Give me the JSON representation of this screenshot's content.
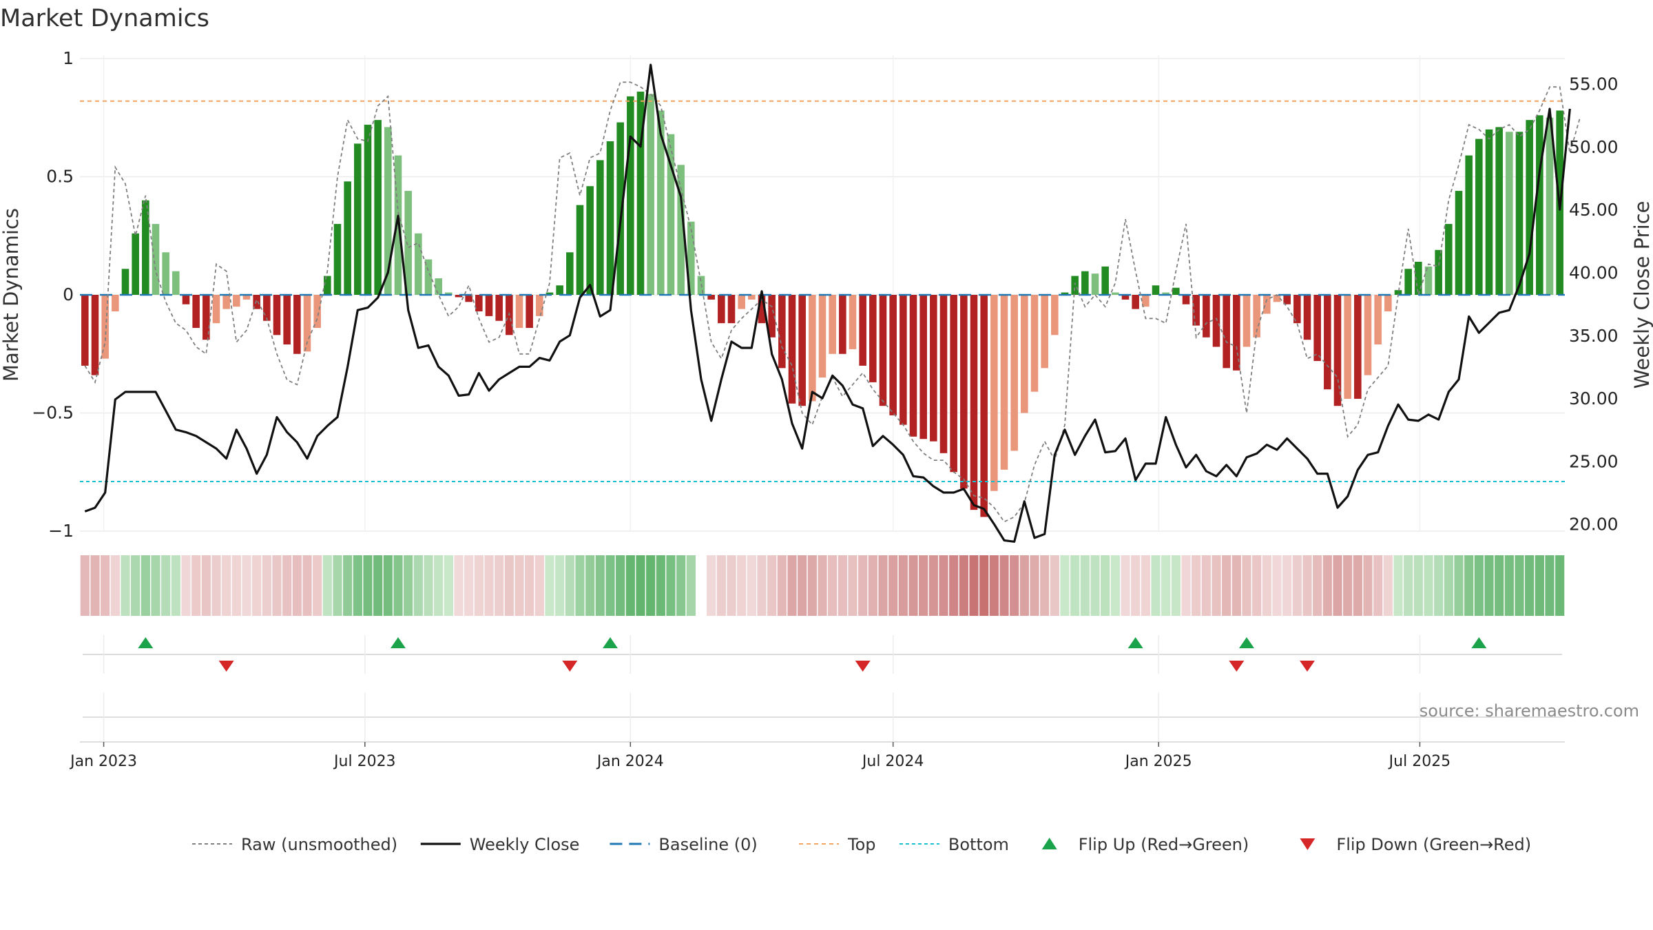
{
  "chart_data": {
    "type": "bar",
    "title": "Market Dynamics",
    "ylabel": "Market Dynamics",
    "y2label": "Weekly Close Price",
    "ylim": [
      -1,
      1
    ],
    "y2lim": [
      15,
      57
    ],
    "yticks": [
      "1",
      "0.5",
      "0",
      "−0.5",
      "−1"
    ],
    "y2ticks": [
      "55.00",
      "50.00",
      "45.00",
      "40.00",
      "35.00",
      "30.00",
      "25.00",
      "20.00"
    ],
    "xticks": [
      "Jan 2023",
      "Jul 2023",
      "Jan 2024",
      "Jul 2024",
      "Jan 2025",
      "Jul 2025"
    ],
    "top_level": 0.82,
    "bottom_level": -0.79,
    "grid": true,
    "legend_position": "bottom",
    "colors": {
      "strong_green": "#228b22",
      "weak_green": "#7dbf7d",
      "strong_red": "#b22222",
      "weak_red": "#e9967a",
      "close_line": "#111111",
      "raw_line": "#7f7f7f",
      "baseline": "#1f77b4",
      "top": "#f4a460",
      "bottom": "#17becf",
      "flip_up": "#1aa34a",
      "flip_down": "#d62728"
    },
    "series": [
      {
        "name": "Weekly Close",
        "values": [
          21,
          21.3,
          22.5,
          29.9,
          30.5,
          30.5,
          30.5,
          30.5,
          29,
          27.5,
          27.3,
          27,
          26.5,
          26,
          25.2,
          27.5,
          26,
          24,
          25.5,
          28.5,
          27.3,
          26.5,
          25.2,
          27,
          27.8,
          28.5,
          32.5,
          37,
          37.2,
          38,
          40,
          44.5,
          37,
          34,
          34.2,
          32.5,
          31.8,
          30.2,
          30.3,
          32,
          30.6,
          31.5,
          32,
          32.5,
          32.5,
          33.2,
          33,
          34.5,
          35,
          38,
          39,
          36.5,
          37,
          44,
          50.8,
          50,
          56.5,
          51,
          48.5,
          46,
          37,
          31.5,
          28.2,
          31.5,
          34.5,
          34,
          34,
          38.5,
          33.5,
          31.5,
          28,
          26,
          30.5,
          30,
          31.8,
          31,
          29.5,
          29.2,
          26.2,
          27,
          26.3,
          25.5,
          23.8,
          23.7,
          23,
          22.5,
          22.5,
          22.8,
          21.5,
          21.2,
          20,
          18.7,
          18.6,
          21.8,
          18.9,
          19.2,
          25.5,
          27.5,
          25.5,
          27,
          28.3,
          25.7,
          25.8,
          26.8,
          23.5,
          24.8,
          24.8,
          28.5,
          26.3,
          24.5,
          25.5,
          24.2,
          23.8,
          24.7,
          23.8,
          25.3,
          25.6,
          26.3,
          25.9,
          26.8,
          26,
          25.2,
          24,
          24,
          21.3,
          22.2,
          24.3,
          25.5,
          25.7,
          27.8,
          29.5,
          28.3,
          28.2,
          28.7,
          28.3,
          30.5,
          31.5,
          36.5,
          35.2,
          36,
          36.8,
          37,
          39,
          41.5,
          48,
          53,
          45,
          53
        ]
      },
      {
        "name": "Raw (unsmoothed)",
        "values": [
          -0.3,
          -0.37,
          -0.2,
          0.54,
          0.47,
          0.25,
          0.42,
          0.1,
          -0.03,
          -0.12,
          -0.15,
          -0.22,
          -0.25,
          0.13,
          0.1,
          -0.2,
          -0.15,
          -0.02,
          -0.1,
          -0.25,
          -0.36,
          -0.38,
          -0.2,
          -0.1,
          0.1,
          0.5,
          0.74,
          0.66,
          0.65,
          0.8,
          0.84,
          0.35,
          0.2,
          0.22,
          0.1,
          0.0,
          -0.09,
          -0.05,
          0.04,
          -0.1,
          -0.2,
          -0.18,
          -0.08,
          -0.25,
          -0.25,
          -0.1,
          0.05,
          0.58,
          0.6,
          0.42,
          0.58,
          0.6,
          0.78,
          0.9,
          0.9,
          0.88,
          0.85,
          0.8,
          0.62,
          0.45,
          0.28,
          0.05,
          -0.2,
          -0.27,
          -0.15,
          -0.1,
          -0.06,
          -0.02,
          -0.05,
          -0.22,
          -0.3,
          -0.5,
          -0.55,
          -0.43,
          -0.35,
          -0.43,
          -0.38,
          -0.33,
          -0.4,
          -0.45,
          -0.5,
          -0.55,
          -0.62,
          -0.67,
          -0.7,
          -0.7,
          -0.75,
          -0.78,
          -0.85,
          -0.86,
          -0.9,
          -0.96,
          -0.94,
          -0.88,
          -0.72,
          -0.62,
          -0.7,
          -0.55,
          0.05,
          -0.05,
          0.0,
          -0.05,
          0.05,
          0.32,
          0.1,
          -0.1,
          -0.1,
          -0.12,
          0.1,
          0.3,
          -0.18,
          -0.12,
          -0.1,
          -0.2,
          -0.22,
          -0.5,
          -0.15,
          -0.02,
          0.0,
          -0.05,
          -0.12,
          -0.27,
          -0.25,
          -0.3,
          -0.35,
          -0.6,
          -0.55,
          -0.4,
          -0.35,
          -0.3,
          0.0,
          0.28,
          0.0,
          0.13,
          0.12,
          0.4,
          0.55,
          0.72,
          0.7,
          0.66,
          0.7,
          0.72,
          0.67,
          0.7,
          0.78,
          0.88,
          0.88,
          0.6,
          0.75
        ]
      },
      {
        "name": "Market Dynamics",
        "values": [
          -0.3,
          -0.34,
          -0.27,
          -0.07,
          0.11,
          0.26,
          0.4,
          0.3,
          0.18,
          0.1,
          -0.04,
          -0.14,
          -0.19,
          -0.12,
          -0.06,
          -0.05,
          -0.02,
          -0.06,
          -0.11,
          -0.17,
          -0.21,
          -0.25,
          -0.24,
          -0.14,
          0.08,
          0.3,
          0.48,
          0.64,
          0.72,
          0.74,
          0.71,
          0.59,
          0.44,
          0.26,
          0.15,
          0.07,
          0.01,
          -0.01,
          -0.03,
          -0.07,
          -0.09,
          -0.11,
          -0.17,
          -0.14,
          -0.14,
          -0.09,
          0.01,
          0.04,
          0.18,
          0.38,
          0.46,
          0.57,
          0.65,
          0.73,
          0.84,
          0.86,
          0.85,
          0.78,
          0.68,
          0.55,
          0.31,
          0.08,
          -0.02,
          -0.12,
          -0.12,
          -0.06,
          -0.02,
          -0.12,
          -0.18,
          -0.31,
          -0.46,
          -0.47,
          -0.45,
          -0.35,
          -0.25,
          -0.25,
          -0.23,
          -0.3,
          -0.37,
          -0.47,
          -0.51,
          -0.55,
          -0.6,
          -0.61,
          -0.62,
          -0.67,
          -0.75,
          -0.82,
          -0.91,
          -0.94,
          -0.83,
          -0.74,
          -0.66,
          -0.5,
          -0.41,
          -0.31,
          -0.17,
          0.01,
          0.08,
          0.1,
          0.09,
          0.12,
          0.01,
          -0.02,
          -0.06,
          -0.05,
          0.04,
          0.01,
          0.03,
          -0.04,
          -0.13,
          -0.18,
          -0.22,
          -0.31,
          -0.32,
          -0.22,
          -0.18,
          -0.08,
          -0.03,
          -0.04,
          -0.12,
          -0.19,
          -0.28,
          -0.4,
          -0.47,
          -0.44,
          -0.44,
          -0.34,
          -0.21,
          -0.07,
          0.02,
          0.11,
          0.14,
          0.12,
          0.19,
          0.3,
          0.44,
          0.59,
          0.66,
          0.7,
          0.71,
          0.69,
          0.69,
          0.74,
          0.76,
          0.75,
          0.78
        ]
      }
    ],
    "flip_up_weeks": [
      6,
      31,
      52,
      104,
      115,
      138
    ],
    "flip_down_weeks": [
      14,
      48,
      77,
      114,
      121
    ]
  },
  "legend": [
    {
      "label": "Raw (unsmoothed)",
      "kind": "dash-gray"
    },
    {
      "label": "Weekly Close",
      "kind": "solid-black"
    },
    {
      "label": "Baseline (0)",
      "kind": "dash-blue"
    },
    {
      "label": "Top",
      "kind": "dash-orange"
    },
    {
      "label": "Bottom",
      "kind": "dash-cyan"
    },
    {
      "label": "Flip Up (Red→Green)",
      "kind": "triangle-up"
    },
    {
      "label": "Flip Down (Green→Red)",
      "kind": "triangle-down"
    }
  ],
  "source": "source: sharemaestro.com"
}
